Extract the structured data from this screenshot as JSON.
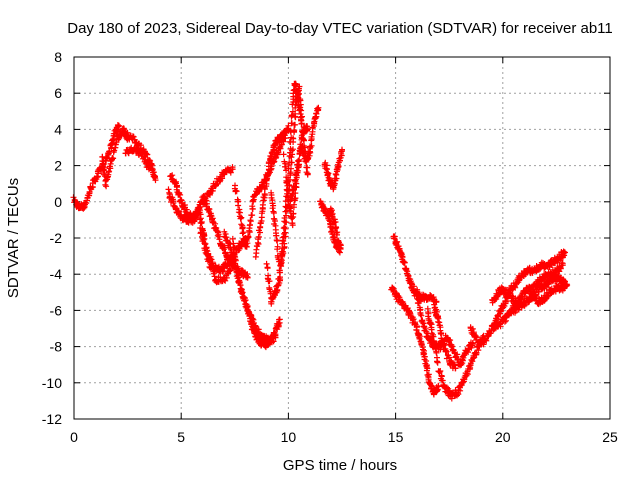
{
  "chart_data": {
    "type": "scatter",
    "title": "Day 180 of 2023, Sidereal Day-to-day VTEC variation (SDTVAR) for receiver ab11",
    "xlabel": "GPS time / hours",
    "ylabel": "SDTVAR / TECUs",
    "xlim": [
      0,
      25
    ],
    "ylim": [
      -12,
      8
    ],
    "xticks": [
      0,
      5,
      10,
      15,
      20,
      25
    ],
    "yticks": [
      -12,
      -10,
      -8,
      -6,
      -4,
      -2,
      0,
      2,
      4,
      6,
      8
    ],
    "grid": true,
    "marker": "plus",
    "color": "#ff0000",
    "series": [
      {
        "name": "",
        "tracks": [
          [
            [
              0.0,
              0.1
            ],
            [
              0.2,
              -0.3
            ],
            [
              0.5,
              -0.2
            ],
            [
              0.8,
              0.8
            ],
            [
              1.1,
              1.5
            ],
            [
              1.4,
              2.0
            ],
            [
              1.7,
              3.0
            ],
            [
              1.9,
              3.8
            ],
            [
              2.1,
              4.2
            ]
          ],
          [
            [
              1.3,
              2.5
            ],
            [
              1.5,
              1.0
            ],
            [
              1.7,
              2.0
            ],
            [
              2.0,
              3.5
            ],
            [
              2.3,
              4.0
            ],
            [
              2.5,
              3.5
            ]
          ],
          [
            [
              2.3,
              3.8
            ],
            [
              2.6,
              3.6
            ],
            [
              3.0,
              3.2
            ],
            [
              3.3,
              2.7
            ],
            [
              3.6,
              2.0
            ],
            [
              3.8,
              1.2
            ]
          ],
          [
            [
              2.4,
              2.8
            ],
            [
              2.8,
              2.9
            ],
            [
              3.2,
              2.6
            ],
            [
              3.5,
              1.8
            ]
          ],
          [
            [
              4.5,
              1.5
            ],
            [
              4.8,
              0.8
            ],
            [
              5.0,
              0.0
            ],
            [
              5.3,
              -0.7
            ],
            [
              5.6,
              -0.8
            ],
            [
              5.9,
              -0.2
            ],
            [
              6.2,
              0.3
            ],
            [
              6.5,
              0.8
            ],
            [
              6.8,
              1.3
            ],
            [
              7.1,
              1.7
            ],
            [
              7.4,
              1.8
            ]
          ],
          [
            [
              4.4,
              0.6
            ],
            [
              4.7,
              -0.3
            ],
            [
              5.0,
              -0.8
            ],
            [
              5.3,
              -1.0
            ],
            [
              5.6,
              -1.0
            ],
            [
              5.8,
              -0.6
            ]
          ],
          [
            [
              6.0,
              0.3
            ],
            [
              6.3,
              -0.5
            ],
            [
              6.6,
              -1.5
            ],
            [
              6.9,
              -2.4
            ],
            [
              7.2,
              -3.2
            ],
            [
              7.5,
              -3.6
            ],
            [
              7.8,
              -3.9
            ],
            [
              8.1,
              -4.2
            ]
          ],
          [
            [
              5.8,
              -0.2
            ],
            [
              6.0,
              -1.5
            ],
            [
              6.2,
              -2.8
            ],
            [
              6.5,
              -3.6
            ],
            [
              6.8,
              -3.8
            ],
            [
              7.1,
              -3.5
            ],
            [
              7.4,
              -3.0
            ],
            [
              7.7,
              -2.5
            ],
            [
              8.0,
              -2.0
            ]
          ],
          [
            [
              5.9,
              -1.5
            ],
            [
              6.2,
              -3.0
            ],
            [
              6.6,
              -4.3
            ],
            [
              7.0,
              -4.3
            ],
            [
              7.3,
              -3.8
            ]
          ],
          [
            [
              7.0,
              -1.8
            ],
            [
              7.3,
              -2.5
            ],
            [
              7.6,
              -4.0
            ],
            [
              7.9,
              -5.3
            ],
            [
              8.2,
              -6.3
            ],
            [
              8.5,
              -7.0
            ],
            [
              8.8,
              -7.5
            ],
            [
              9.1,
              -7.7
            ],
            [
              9.4,
              -7.2
            ],
            [
              9.6,
              -6.5
            ]
          ],
          [
            [
              7.4,
              -2.2
            ],
            [
              7.7,
              -4.5
            ],
            [
              8.1,
              -6.0
            ],
            [
              8.4,
              -7.2
            ],
            [
              8.7,
              -7.8
            ],
            [
              9.0,
              -7.9
            ]
          ],
          [
            [
              8.3,
              -6.9
            ],
            [
              8.6,
              -7.6
            ],
            [
              9.0,
              -7.8
            ],
            [
              9.4,
              -7.5
            ]
          ],
          [
            [
              7.5,
              1.0
            ],
            [
              7.8,
              -1.0
            ],
            [
              8.0,
              -2.6
            ],
            [
              8.2,
              -1.5
            ],
            [
              8.4,
              0.4
            ],
            [
              8.7,
              0.8
            ],
            [
              9.0,
              1.4
            ],
            [
              9.3,
              2.2
            ],
            [
              9.6,
              3.0
            ],
            [
              9.9,
              3.8
            ]
          ],
          [
            [
              8.5,
              -3.0
            ],
            [
              8.7,
              -1.2
            ],
            [
              8.9,
              0.5
            ],
            [
              9.1,
              2.0
            ],
            [
              9.3,
              3.0
            ],
            [
              9.5,
              3.4
            ],
            [
              9.7,
              3.6
            ],
            [
              10.0,
              4.2
            ]
          ],
          [
            [
              9.2,
              0.5
            ],
            [
              9.4,
              -1.5
            ],
            [
              9.6,
              -3.8
            ],
            [
              9.8,
              -2.5
            ],
            [
              10.0,
              0.5
            ],
            [
              10.2,
              3.0
            ],
            [
              10.35,
              5.5
            ],
            [
              10.5,
              6.2
            ],
            [
              10.7,
              3.5
            ],
            [
              10.9,
              1.5
            ]
          ],
          [
            [
              9.0,
              -3.5
            ],
            [
              9.2,
              -5.5
            ],
            [
              9.4,
              -5.0
            ],
            [
              9.6,
              -4.2
            ],
            [
              9.8,
              -1.5
            ],
            [
              10.0,
              1.5
            ],
            [
              10.15,
              4.5
            ],
            [
              10.3,
              6.6
            ],
            [
              10.45,
              5.8
            ],
            [
              10.6,
              4.5
            ]
          ],
          [
            [
              9.8,
              2.5
            ],
            [
              10.0,
              0.0
            ],
            [
              10.2,
              -1.2
            ],
            [
              10.4,
              1.5
            ],
            [
              10.6,
              3.2
            ],
            [
              10.8,
              2.2
            ],
            [
              11.0,
              2.8
            ],
            [
              11.2,
              4.4
            ],
            [
              11.4,
              5.2
            ]
          ],
          [
            [
              10.1,
              0.0
            ],
            [
              10.3,
              1.0
            ],
            [
              10.5,
              2.5
            ],
            [
              10.7,
              4.0
            ],
            [
              10.9,
              4.0
            ]
          ],
          [
            [
              11.5,
              0.0
            ],
            [
              11.7,
              -0.5
            ],
            [
              11.9,
              -0.8
            ],
            [
              12.0,
              -0.5
            ],
            [
              12.2,
              -1.4
            ],
            [
              12.4,
              -2.8
            ]
          ],
          [
            [
              11.9,
              -1.0
            ],
            [
              12.1,
              -2.0
            ],
            [
              12.3,
              -2.6
            ],
            [
              12.45,
              -2.4
            ]
          ],
          [
            [
              11.7,
              2.2
            ],
            [
              11.9,
              1.2
            ],
            [
              12.1,
              0.8
            ],
            [
              12.3,
              1.8
            ],
            [
              12.5,
              2.8
            ]
          ],
          [
            [
              14.9,
              -2.0
            ],
            [
              15.1,
              -2.4
            ],
            [
              15.3,
              -3.0
            ],
            [
              15.5,
              -3.8
            ],
            [
              15.7,
              -4.5
            ],
            [
              15.9,
              -5.0
            ],
            [
              16.1,
              -5.3
            ],
            [
              16.3,
              -5.3
            ],
            [
              16.6,
              -5.2
            ],
            [
              16.9,
              -5.5
            ]
          ],
          [
            [
              14.8,
              -4.8
            ],
            [
              15.1,
              -5.3
            ],
            [
              15.4,
              -5.8
            ],
            [
              15.7,
              -6.3
            ],
            [
              16.0,
              -7.0
            ],
            [
              16.2,
              -7.8
            ],
            [
              16.4,
              -8.8
            ],
            [
              16.6,
              -10.0
            ],
            [
              16.8,
              -10.6
            ],
            [
              17.0,
              -10.2
            ]
          ],
          [
            [
              16.0,
              -5.0
            ],
            [
              16.2,
              -6.5
            ],
            [
              16.5,
              -7.5
            ],
            [
              16.8,
              -8.0
            ],
            [
              17.1,
              -8.0
            ],
            [
              17.4,
              -7.5
            ],
            [
              17.7,
              -8.2
            ],
            [
              18.0,
              -9.0
            ],
            [
              18.3,
              -8.3
            ],
            [
              18.6,
              -7.8
            ]
          ],
          [
            [
              16.5,
              -6.0
            ],
            [
              16.7,
              -7.2
            ],
            [
              17.0,
              -9.2
            ],
            [
              17.3,
              -10.3
            ],
            [
              17.6,
              -10.7
            ],
            [
              17.9,
              -10.5
            ],
            [
              18.2,
              -9.8
            ],
            [
              18.5,
              -9.0
            ],
            [
              18.8,
              -8.2
            ],
            [
              19.1,
              -7.4
            ]
          ],
          [
            [
              16.8,
              -5.8
            ],
            [
              17.0,
              -6.5
            ],
            [
              17.2,
              -7.8
            ],
            [
              17.5,
              -8.8
            ],
            [
              17.8,
              -9.2
            ]
          ],
          [
            [
              18.5,
              -7.0
            ],
            [
              18.8,
              -7.6
            ],
            [
              19.1,
              -7.8
            ],
            [
              19.4,
              -7.2
            ],
            [
              19.7,
              -6.5
            ],
            [
              20.0,
              -5.8
            ],
            [
              20.3,
              -5.0
            ],
            [
              20.6,
              -4.5
            ],
            [
              20.9,
              -4.0
            ],
            [
              21.2,
              -3.8
            ],
            [
              21.5,
              -3.8
            ],
            [
              21.8,
              -3.5
            ],
            [
              22.1,
              -3.5
            ],
            [
              22.4,
              -3.3
            ],
            [
              22.7,
              -3.0
            ],
            [
              22.9,
              -2.8
            ]
          ],
          [
            [
              19.5,
              -7.0
            ],
            [
              19.8,
              -6.8
            ],
            [
              20.1,
              -6.5
            ],
            [
              20.4,
              -6.0
            ],
            [
              20.7,
              -5.6
            ],
            [
              21.0,
              -5.0
            ],
            [
              21.3,
              -4.8
            ],
            [
              21.6,
              -4.5
            ],
            [
              21.9,
              -4.2
            ],
            [
              22.2,
              -4.0
            ],
            [
              22.5,
              -3.8
            ],
            [
              22.8,
              -3.5
            ]
          ],
          [
            [
              19.5,
              -5.5
            ],
            [
              19.8,
              -5.0
            ],
            [
              20.0,
              -4.8
            ],
            [
              20.3,
              -5.2
            ],
            [
              20.6,
              -5.5
            ]
          ],
          [
            [
              20.5,
              -6.0
            ],
            [
              20.8,
              -5.8
            ],
            [
              21.1,
              -5.5
            ],
            [
              21.4,
              -5.2
            ],
            [
              21.7,
              -4.8
            ],
            [
              22.0,
              -4.6
            ],
            [
              22.3,
              -4.3
            ],
            [
              22.6,
              -4.2
            ],
            [
              22.9,
              -4.4
            ]
          ],
          [
            [
              21.3,
              -5.0
            ],
            [
              21.6,
              -5.5
            ],
            [
              21.9,
              -5.4
            ],
            [
              22.2,
              -5.0
            ],
            [
              22.5,
              -4.8
            ],
            [
              22.8,
              -4.8
            ],
            [
              23.0,
              -4.6
            ]
          ]
        ]
      }
    ]
  }
}
